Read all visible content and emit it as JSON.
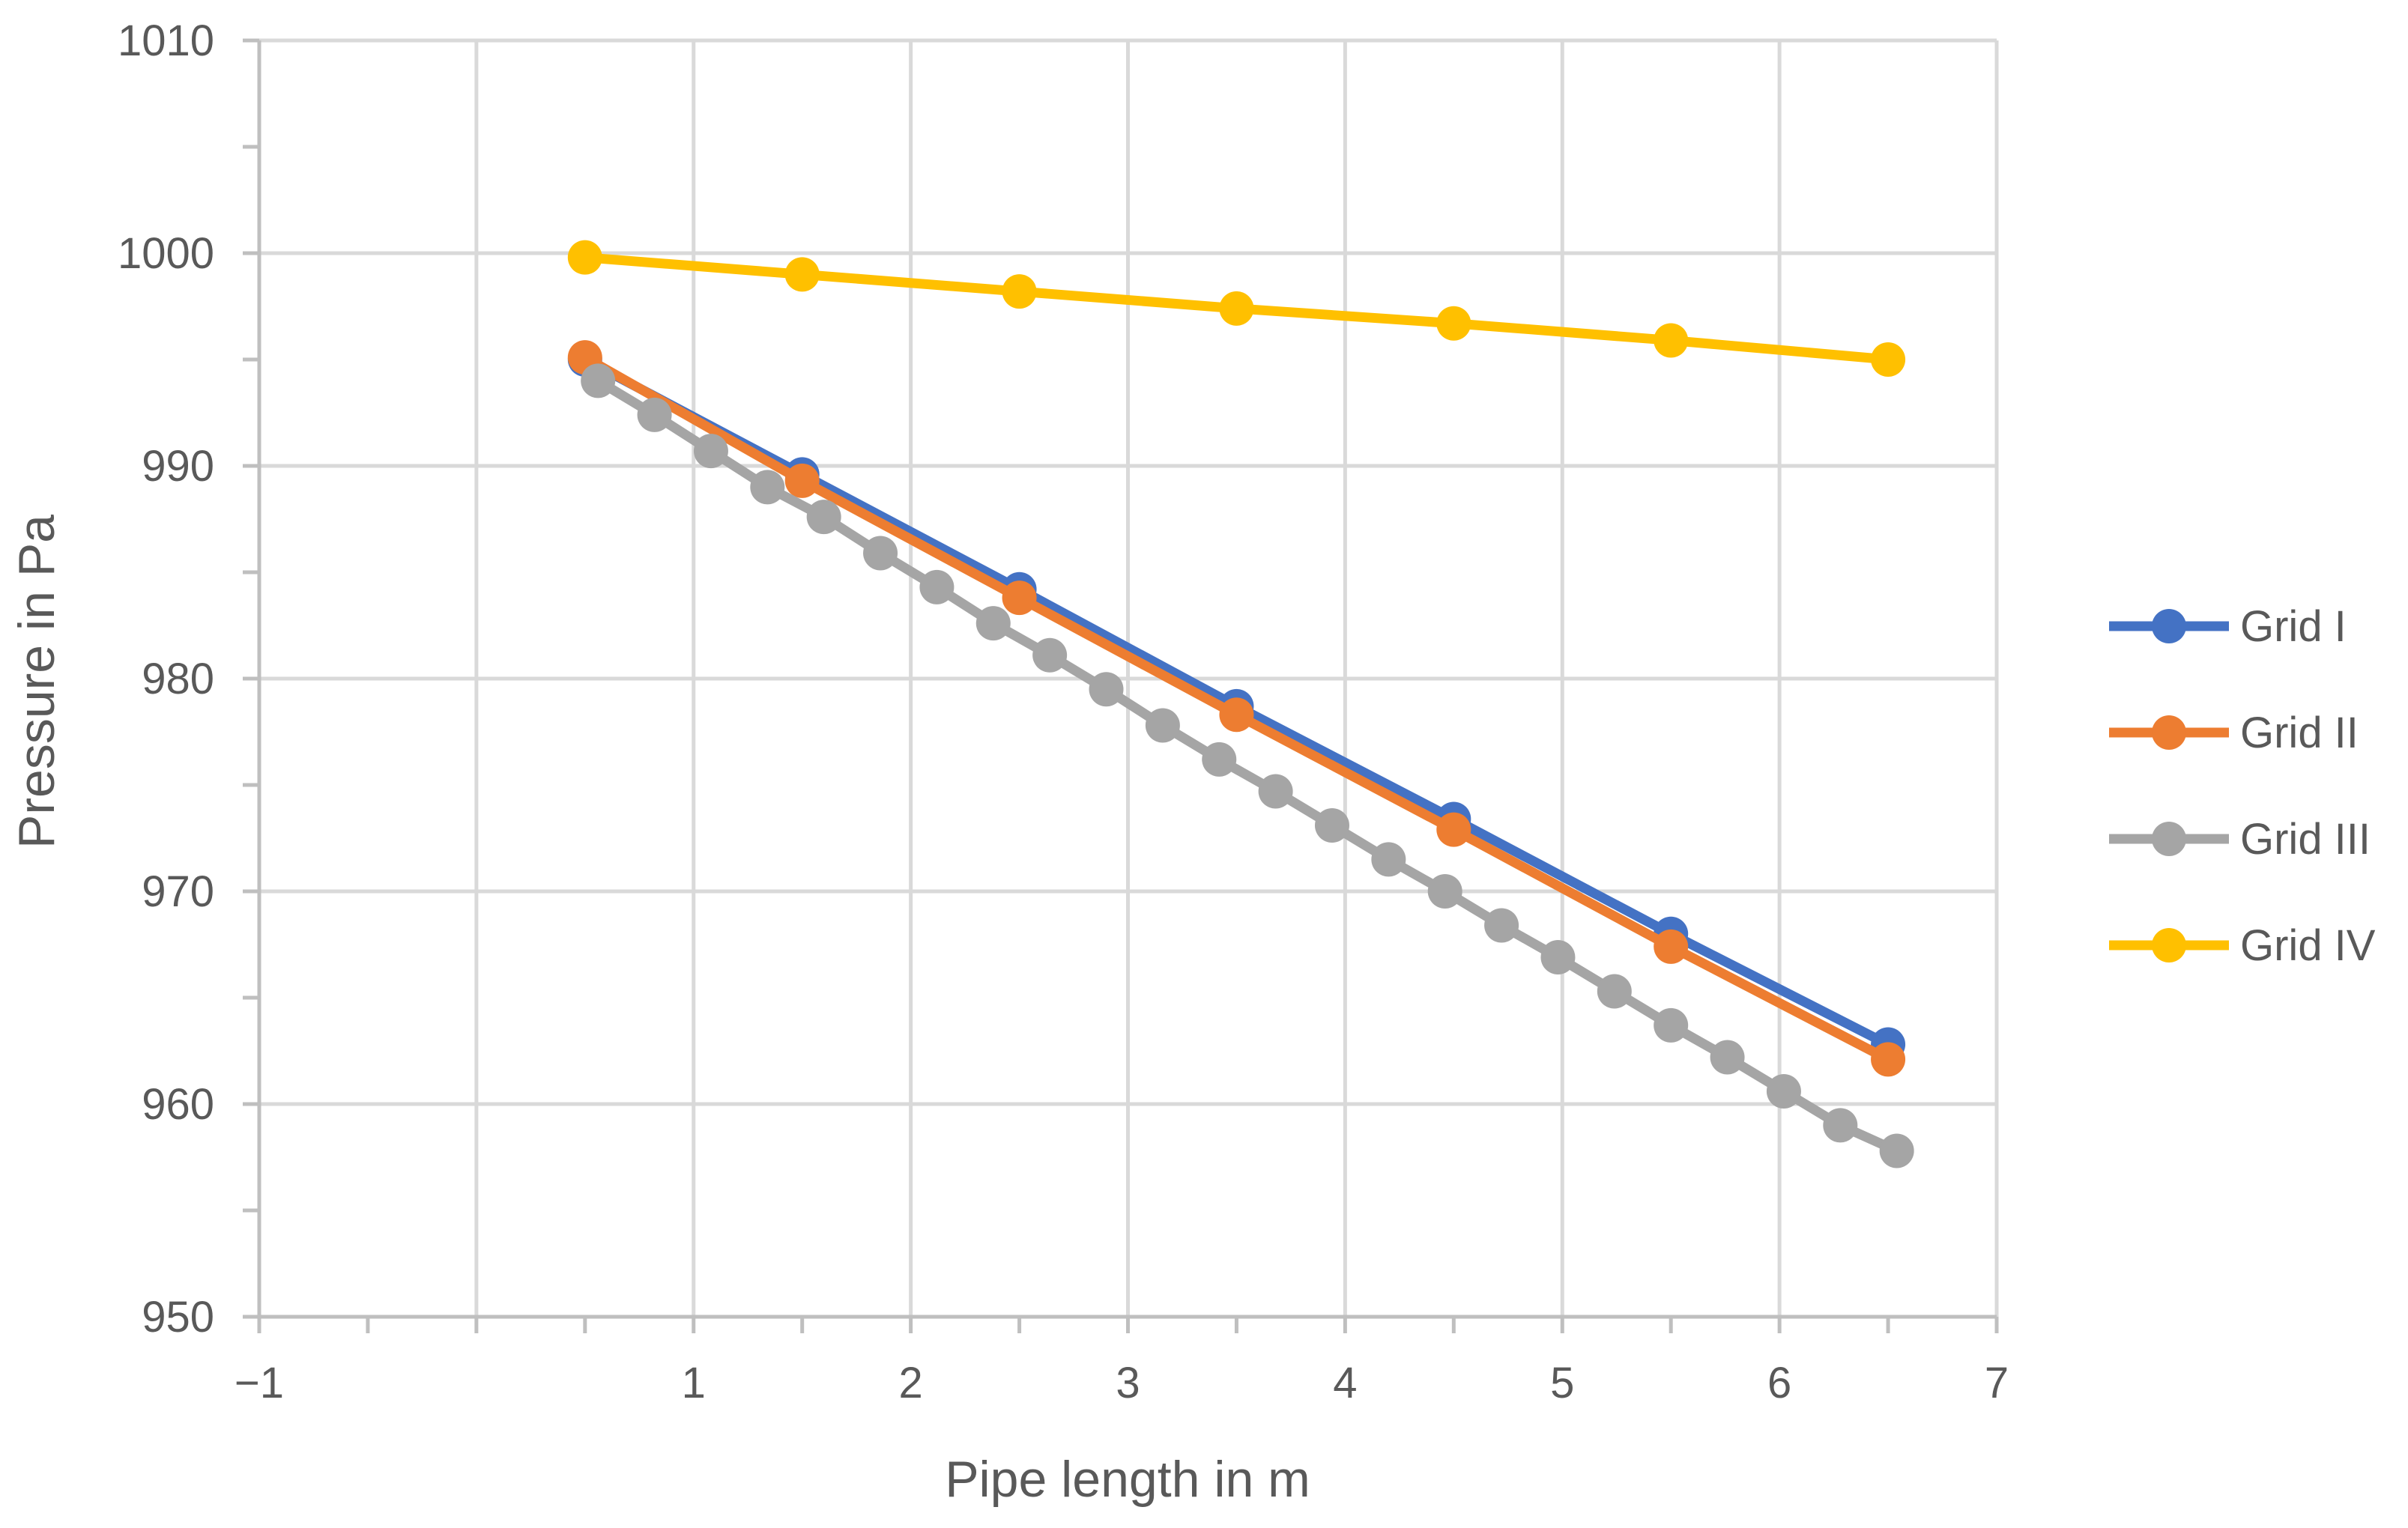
{
  "chart_data": {
    "type": "line",
    "title": "",
    "xlabel": "Pipe length in m",
    "ylabel": "Pressure in Pa",
    "xlim": [
      -1,
      7
    ],
    "ylim": [
      950,
      1010
    ],
    "xticks": [
      -1,
      1,
      2,
      3,
      4,
      5,
      6,
      7
    ],
    "xtick_labels": [
      "−1",
      "1",
      "2",
      "3",
      "4",
      "5",
      "6",
      "7"
    ],
    "yticks": [
      950,
      960,
      970,
      980,
      990,
      1000,
      1010
    ],
    "ytick_labels": [
      "950",
      "960",
      "970",
      "980",
      "990",
      "1000",
      "1010"
    ],
    "grid": true,
    "legend_position": "right",
    "series": [
      {
        "name": "Grid I",
        "color": "#4472C4",
        "x": [
          0.5,
          1.5,
          2.5,
          3.5,
          4.5,
          5.5,
          6.5
        ],
        "y": [
          995.0,
          989.6,
          984.2,
          978.7,
          973.4,
          968.0,
          962.8
        ]
      },
      {
        "name": "Grid II",
        "color": "#ED7D31",
        "x": [
          0.5,
          1.5,
          2.5,
          3.5,
          4.5,
          5.5,
          6.5
        ],
        "y": [
          995.1,
          989.3,
          983.8,
          978.3,
          972.9,
          967.4,
          962.1
        ]
      },
      {
        "name": "Grid III",
        "color": "#A5A5A5",
        "x": [
          0.56,
          0.82,
          1.08,
          1.34,
          1.6,
          1.86,
          2.12,
          2.38,
          2.64,
          2.9,
          3.16,
          3.42,
          3.68,
          3.94,
          4.2,
          4.46,
          4.72,
          4.98,
          5.24,
          5.5,
          5.76,
          6.02,
          6.28,
          6.54
        ],
        "y": [
          994.0,
          992.4,
          990.7,
          989.0,
          987.6,
          985.9,
          984.3,
          982.6,
          981.1,
          979.5,
          977.8,
          976.2,
          974.7,
          973.1,
          971.5,
          970.0,
          968.4,
          966.9,
          965.3,
          963.7,
          962.2,
          960.6,
          959.0,
          957.8
        ]
      },
      {
        "name": "Grid IV",
        "color": "#FFC000",
        "x": [
          0.5,
          1.5,
          2.5,
          3.5,
          4.5,
          5.5,
          6.5
        ],
        "y": [
          999.8,
          999.0,
          998.2,
          997.4,
          996.7,
          995.9,
          995.0
        ]
      }
    ]
  }
}
